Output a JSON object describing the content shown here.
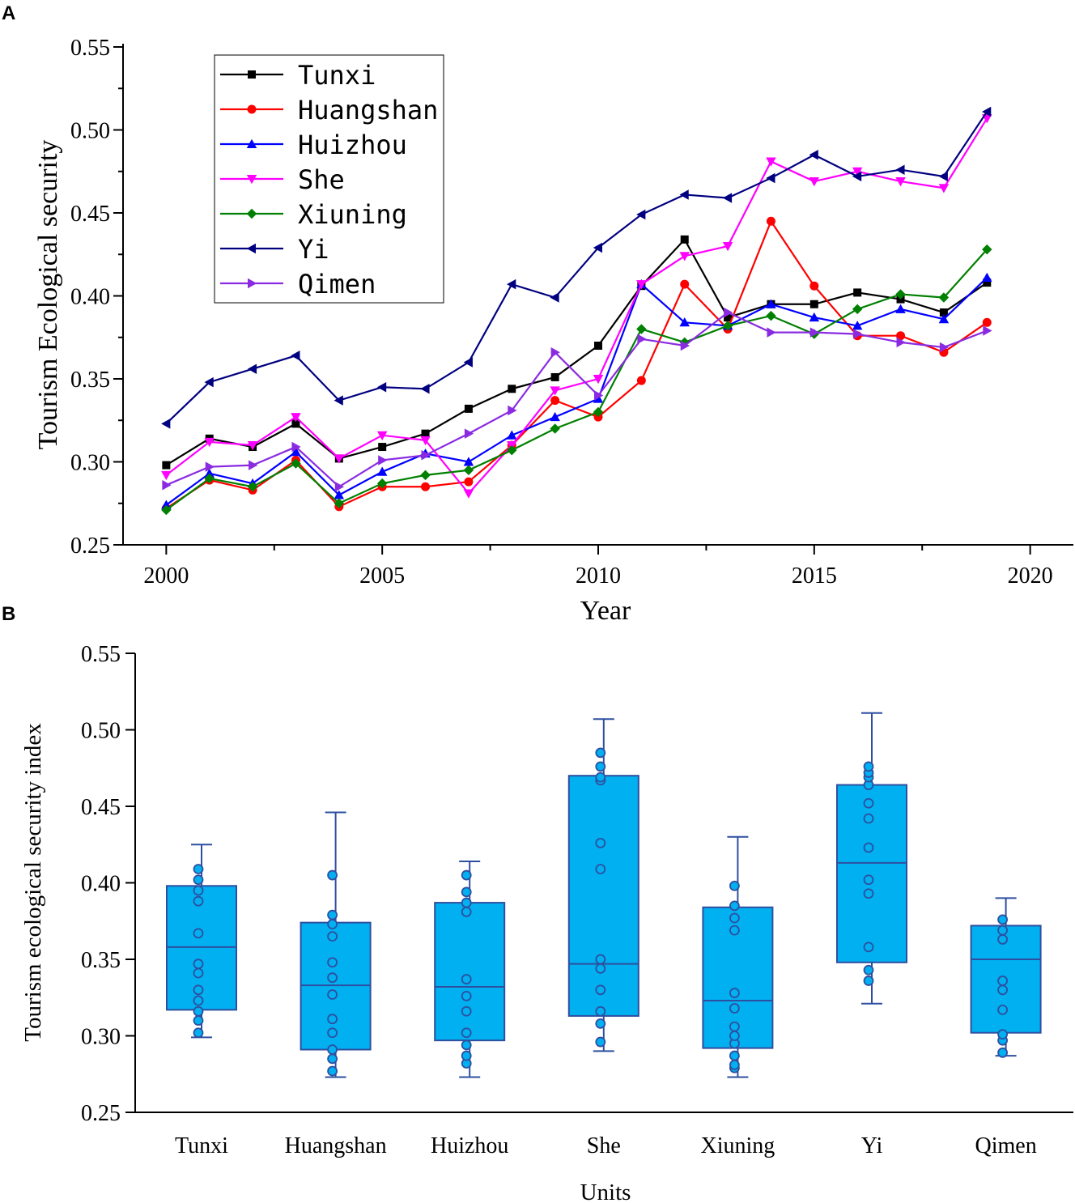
{
  "panels": {
    "a": {
      "label": "A"
    },
    "b": {
      "label": "B"
    }
  },
  "chart_data": [
    {
      "type": "line",
      "panel": "A",
      "title": "",
      "xlabel": "Year",
      "ylabel": "Tourism Ecological security",
      "xlim": [
        1999,
        2021
      ],
      "ylim": [
        0.25,
        0.55
      ],
      "xticks": [
        2000,
        2005,
        2010,
        2015,
        2020
      ],
      "yticks": [
        "0.25",
        "0.30",
        "0.35",
        "0.40",
        "0.45",
        "0.50",
        "0.55"
      ],
      "legend_position": "top-left",
      "x": [
        2000,
        2001,
        2002,
        2003,
        2004,
        2005,
        2006,
        2007,
        2008,
        2009,
        2010,
        2011,
        2012,
        2013,
        2014,
        2015,
        2016,
        2017,
        2018,
        2019
      ],
      "series": [
        {
          "name": "Tunxi",
          "color": "#000000",
          "marker": "square",
          "values": [
            0.298,
            0.314,
            0.309,
            0.323,
            0.302,
            0.309,
            0.317,
            0.332,
            0.344,
            0.351,
            0.37,
            0.406,
            0.434,
            0.387,
            0.395,
            0.395,
            0.402,
            0.398,
            0.39,
            0.408
          ]
        },
        {
          "name": "Huangshan",
          "color": "#ff0000",
          "marker": "circle",
          "values": [
            0.272,
            0.289,
            0.283,
            0.301,
            0.273,
            0.285,
            0.285,
            0.288,
            0.31,
            0.337,
            0.327,
            0.349,
            0.407,
            0.38,
            0.445,
            0.406,
            0.376,
            0.376,
            0.366,
            0.384
          ]
        },
        {
          "name": "Huizhou",
          "color": "#0000ff",
          "marker": "triangle-up",
          "values": [
            0.274,
            0.293,
            0.287,
            0.306,
            0.28,
            0.294,
            0.305,
            0.3,
            0.316,
            0.327,
            0.338,
            0.407,
            0.384,
            0.382,
            0.395,
            0.387,
            0.382,
            0.392,
            0.386,
            0.411
          ]
        },
        {
          "name": "She",
          "color": "#ff00ff",
          "marker": "triangle-down",
          "values": [
            0.292,
            0.312,
            0.31,
            0.327,
            0.302,
            0.316,
            0.313,
            0.281,
            0.31,
            0.343,
            0.35,
            0.407,
            0.424,
            0.43,
            0.481,
            0.469,
            0.475,
            0.469,
            0.465,
            0.507
          ]
        },
        {
          "name": "Xiuning",
          "color": "#008000",
          "marker": "diamond",
          "values": [
            0.271,
            0.29,
            0.285,
            0.299,
            0.275,
            0.287,
            0.292,
            0.295,
            0.307,
            0.32,
            0.33,
            0.38,
            0.372,
            0.382,
            0.388,
            0.377,
            0.392,
            0.401,
            0.399,
            0.428
          ]
        },
        {
          "name": "Yi",
          "color": "#000080",
          "marker": "triangle-left",
          "values": [
            0.323,
            0.348,
            0.356,
            0.364,
            0.337,
            0.345,
            0.344,
            0.36,
            0.407,
            0.399,
            0.429,
            0.449,
            0.461,
            0.459,
            0.471,
            0.485,
            0.472,
            0.476,
            0.472,
            0.511
          ]
        },
        {
          "name": "Qimen",
          "color": "#8a2be2",
          "marker": "triangle-right",
          "values": [
            0.286,
            0.297,
            0.298,
            0.309,
            0.285,
            0.301,
            0.304,
            0.317,
            0.331,
            0.366,
            0.34,
            0.374,
            0.37,
            0.39,
            0.378,
            0.378,
            0.377,
            0.372,
            0.369,
            0.379
          ]
        }
      ]
    },
    {
      "type": "box",
      "panel": "B",
      "title": "",
      "xlabel": "Units",
      "ylabel": "Tourism ecological security index",
      "ylim": [
        0.25,
        0.55
      ],
      "yticks": [
        "0.25",
        "0.30",
        "0.35",
        "0.40",
        "0.45",
        "0.50",
        "0.55"
      ],
      "fill_color": "#00b0f0",
      "edge_color": "#2e4fa0",
      "categories": [
        "Tunxi",
        "Huangshan",
        "Huizhou",
        "She",
        "Xiuning",
        "Yi",
        "Qimen"
      ],
      "boxes": [
        {
          "name": "Tunxi",
          "whisker_low": 0.299,
          "q1": 0.317,
          "median": 0.358,
          "q3": 0.398,
          "whisker_high": 0.425,
          "points": [
            0.302,
            0.31,
            0.316,
            0.323,
            0.33,
            0.341,
            0.347,
            0.367,
            0.388,
            0.395,
            0.402,
            0.409
          ]
        },
        {
          "name": "Huangshan",
          "whisker_low": 0.273,
          "q1": 0.291,
          "median": 0.333,
          "q3": 0.374,
          "whisker_high": 0.446,
          "points": [
            0.277,
            0.285,
            0.291,
            0.302,
            0.311,
            0.327,
            0.338,
            0.348,
            0.365,
            0.373,
            0.379,
            0.405
          ]
        },
        {
          "name": "Huizhou",
          "whisker_low": 0.273,
          "q1": 0.297,
          "median": 0.332,
          "q3": 0.387,
          "whisker_high": 0.414,
          "points": [
            0.282,
            0.287,
            0.294,
            0.302,
            0.316,
            0.326,
            0.337,
            0.381,
            0.387,
            0.394,
            0.405
          ]
        },
        {
          "name": "She",
          "whisker_low": 0.29,
          "q1": 0.313,
          "median": 0.347,
          "q3": 0.47,
          "whisker_high": 0.507,
          "points": [
            0.296,
            0.308,
            0.316,
            0.33,
            0.344,
            0.35,
            0.409,
            0.426,
            0.467,
            0.469,
            0.476,
            0.485
          ]
        },
        {
          "name": "Xiuning",
          "whisker_low": 0.273,
          "q1": 0.292,
          "median": 0.323,
          "q3": 0.384,
          "whisker_high": 0.43,
          "points": [
            0.279,
            0.281,
            0.287,
            0.295,
            0.3,
            0.306,
            0.318,
            0.328,
            0.369,
            0.377,
            0.385,
            0.398
          ]
        },
        {
          "name": "Yi",
          "whisker_low": 0.321,
          "q1": 0.348,
          "median": 0.413,
          "q3": 0.464,
          "whisker_high": 0.511,
          "points": [
            0.336,
            0.343,
            0.358,
            0.393,
            0.402,
            0.423,
            0.442,
            0.452,
            0.464,
            0.469,
            0.472,
            0.476
          ]
        },
        {
          "name": "Qimen",
          "whisker_low": 0.287,
          "q1": 0.302,
          "median": 0.35,
          "q3": 0.372,
          "whisker_high": 0.39,
          "points": [
            0.289,
            0.297,
            0.301,
            0.317,
            0.33,
            0.336,
            0.363,
            0.369,
            0.376
          ]
        }
      ]
    }
  ]
}
